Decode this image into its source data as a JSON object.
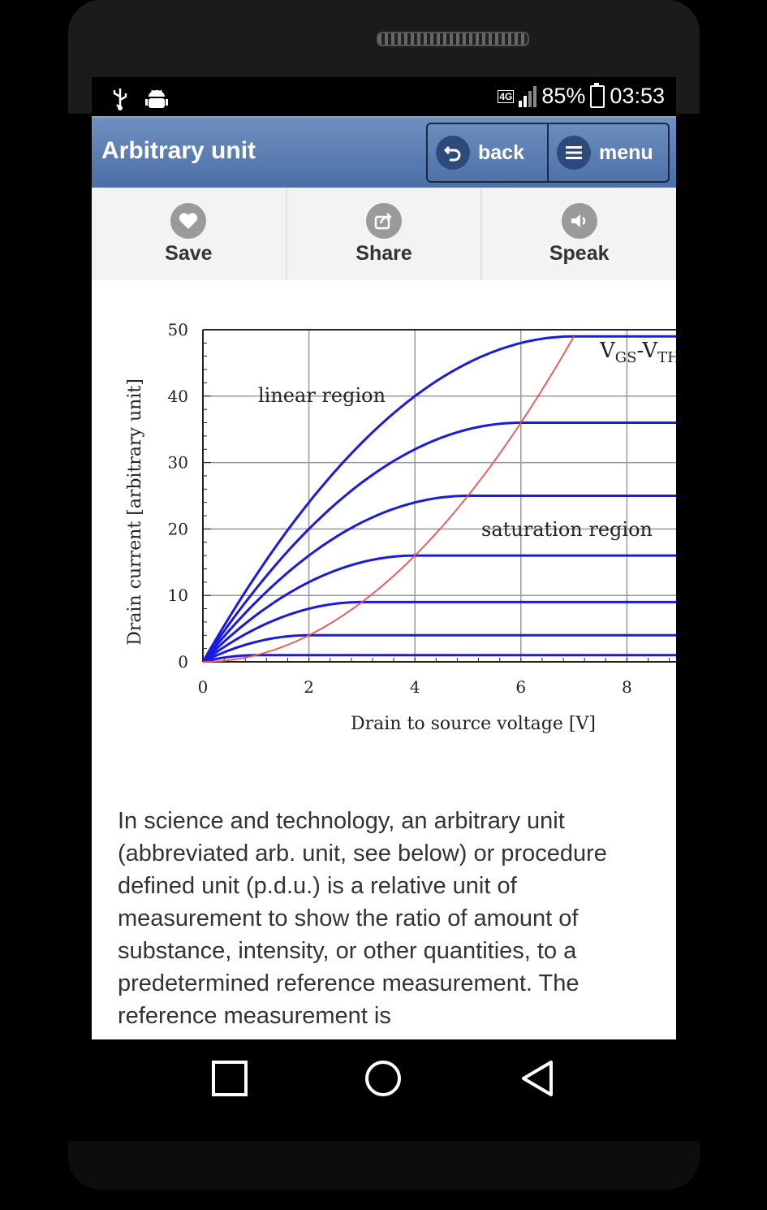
{
  "status_bar": {
    "left_icons": [
      "usb-icon",
      "android-debug-icon"
    ],
    "network": "4G",
    "battery": "85%",
    "time": "03:53"
  },
  "app_bar": {
    "title": "Arbitrary unit",
    "back_label": "back",
    "menu_label": "menu"
  },
  "actions": {
    "save": "Save",
    "share": "Share",
    "speak": "Speak"
  },
  "chart_data": {
    "type": "line",
    "xlabel": "Drain to source voltage [V]",
    "ylabel": "Drain current [arbitrary unit]",
    "xlim": [
      0,
      9
    ],
    "ylim": [
      0,
      50
    ],
    "x_ticks": [
      "0",
      "2",
      "4",
      "6",
      "8"
    ],
    "y_ticks": [
      "0",
      "10",
      "20",
      "30",
      "40",
      "50"
    ],
    "grid": true,
    "annotations": [
      "linear region",
      "saturation region",
      "V",
      "GS",
      "-V",
      "TH"
    ],
    "saturation_levels": [
      1,
      4,
      9,
      16,
      25,
      36,
      49
    ],
    "boundary_curve": "red parabola y = x^2"
  },
  "article": {
    "text": "In science and technology, an arbitrary unit (abbreviated arb. unit, see below) or procedure defined unit (p.d.u.) is a relative unit of measurement to show the ratio of amount of substance, intensity, or other quantities, to a predetermined reference measurement. The reference measurement is"
  }
}
